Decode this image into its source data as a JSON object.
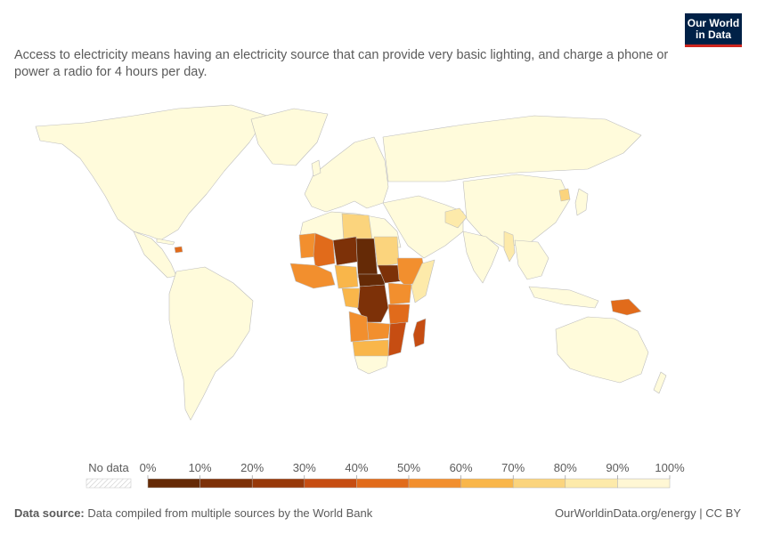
{
  "header": {
    "logo_line1": "Our World",
    "logo_line2": "in Data",
    "subtitle": "Access to electricity means having an electricity source that can provide very basic lighting, and charge a phone or power a radio for 4 hours per day."
  },
  "legend": {
    "no_data_label": "No data",
    "ticks": [
      "0%",
      "10%",
      "20%",
      "30%",
      "40%",
      "50%",
      "60%",
      "70%",
      "80%",
      "90%",
      "100%"
    ],
    "colors": [
      "#652a06",
      "#7d3108",
      "#97390a",
      "#c64d12",
      "#e16b1b",
      "#f28f2e",
      "#f9b64a",
      "#fbd47d",
      "#fdeaaa",
      "#fff7d4"
    ]
  },
  "colors": {
    "no_data": "#e8e8e8",
    "border": "#bdbdbd",
    "ocean": "#ffffff",
    "high_access": "#fffbdb"
  },
  "footer": {
    "source_label": "Data source:",
    "source_text": "Data compiled from multiple sources by the World Bank",
    "credit": "OurWorldinData.org/energy | CC BY"
  }
}
